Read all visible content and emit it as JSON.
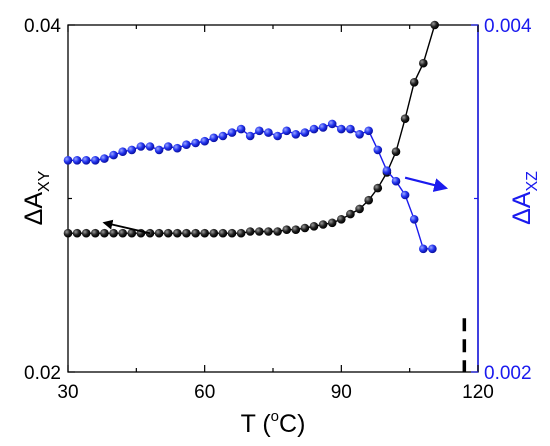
{
  "chart_data": {
    "type": "scatter",
    "title": "",
    "xlabel": {
      "prefix": "T (",
      "sup": "o",
      "suffix": "C)"
    },
    "ylabel_left": {
      "base": "ΔA",
      "sub": "XY"
    },
    "ylabel_right": {
      "base": "ΔA",
      "sub": "XZ"
    },
    "xlim": [
      30,
      120
    ],
    "ylim_left": [
      0.02,
      0.04
    ],
    "ylim_right": [
      0.002,
      0.004
    ],
    "x_ticks": [
      "30",
      "60",
      "90",
      "120"
    ],
    "y_left_ticks": [
      "0.02",
      "0.04"
    ],
    "y_right_ticks": [
      "0.002",
      "0.004"
    ],
    "grid": false,
    "legend": "none",
    "colors": {
      "black_series": "#000000",
      "blue_series": "#1a1aee",
      "right_axis": "#1a1aee"
    },
    "series": [
      {
        "axis": "left",
        "color": "black",
        "x": [
          30,
          32,
          34,
          36,
          38,
          40,
          42,
          44,
          46,
          48,
          50,
          52,
          54,
          56,
          58,
          60,
          62,
          64,
          66,
          68,
          70,
          72,
          74,
          76,
          78,
          80,
          82,
          84,
          86,
          88,
          90,
          92,
          94,
          96,
          98,
          100,
          102,
          104,
          106,
          108,
          110.5
        ],
        "y": [
          0.028,
          0.028,
          0.028,
          0.028,
          0.028,
          0.028,
          0.028,
          0.028,
          0.028,
          0.028,
          0.028,
          0.028,
          0.028,
          0.028,
          0.028,
          0.028,
          0.028,
          0.028,
          0.028,
          0.028,
          0.0281,
          0.0281,
          0.0281,
          0.0281,
          0.0282,
          0.0282,
          0.0283,
          0.0284,
          0.0285,
          0.0286,
          0.0288,
          0.0291,
          0.0294,
          0.0299,
          0.0306,
          0.0315,
          0.0327,
          0.0346,
          0.0367,
          0.0378,
          0.04
        ]
      },
      {
        "axis": "right",
        "color": "blue",
        "x": [
          30,
          32,
          34,
          36,
          38,
          40,
          42,
          44,
          46,
          48,
          50,
          52,
          54,
          56,
          58,
          60,
          62,
          64,
          66,
          68,
          70,
          72,
          74,
          76,
          78,
          80,
          82,
          84,
          86,
          88,
          90,
          92,
          94,
          96,
          98,
          100,
          102,
          104,
          106,
          108,
          110
        ],
        "y": [
          0.00322,
          0.00322,
          0.00322,
          0.00322,
          0.00323,
          0.00325,
          0.00327,
          0.00328,
          0.0033,
          0.0033,
          0.00328,
          0.0033,
          0.00329,
          0.00331,
          0.00332,
          0.00333,
          0.00335,
          0.00336,
          0.00338,
          0.0034,
          0.00336,
          0.00339,
          0.00338,
          0.00336,
          0.00339,
          0.00337,
          0.00338,
          0.0034,
          0.00341,
          0.00343,
          0.0034,
          0.0034,
          0.00337,
          0.00339,
          0.00328,
          0.00316,
          0.0031,
          0.00302,
          0.00288,
          0.00271,
          0.00271
        ]
      }
    ],
    "annotations": [
      {
        "type": "arrow",
        "color": "black",
        "from": [
          48,
          0.028
        ],
        "to": [
          38,
          0.0286
        ],
        "axis": "left",
        "meaning": "black series uses left axis"
      },
      {
        "type": "arrow",
        "color": "blue",
        "from": [
          104,
          0.00312
        ],
        "to": [
          113,
          0.00306
        ],
        "axis": "right",
        "meaning": "blue series uses right axis"
      },
      {
        "type": "dashed-vertical-line",
        "color": "black",
        "x": 117,
        "y_range_left": [
          0.02,
          0.0231
        ]
      }
    ]
  }
}
